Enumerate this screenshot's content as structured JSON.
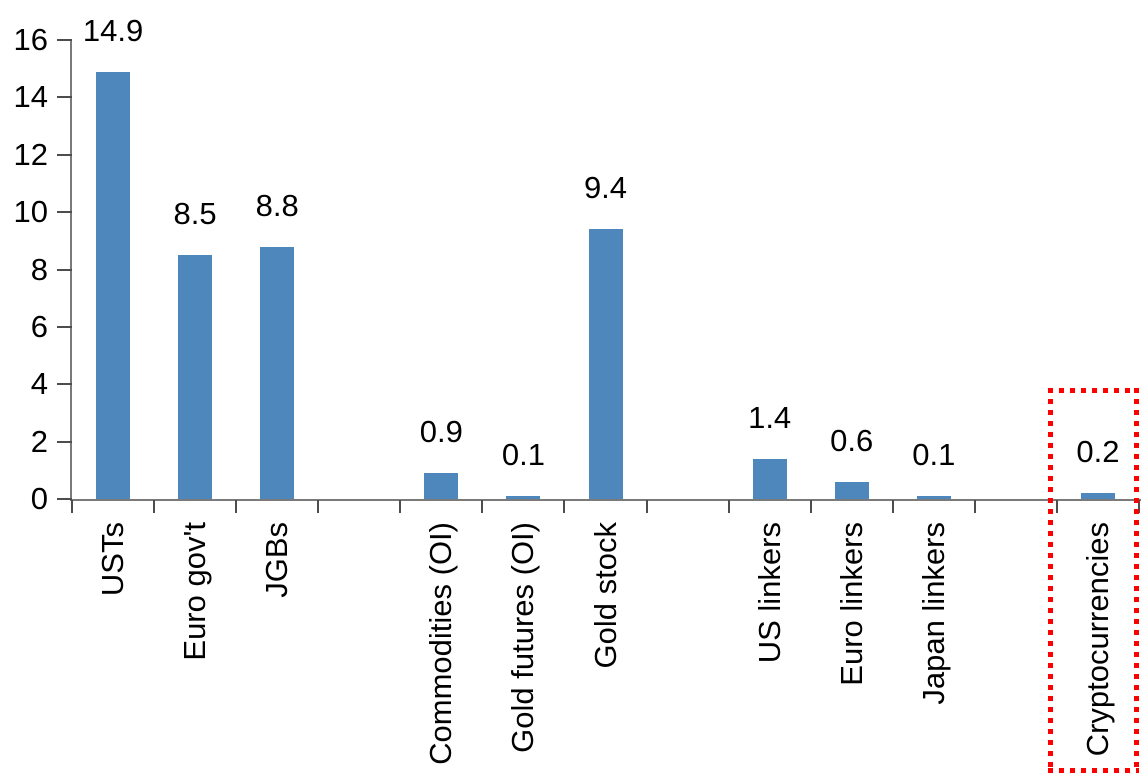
{
  "chart_data": {
    "type": "bar",
    "title": "",
    "y_axis": {
      "min": 0,
      "max": 16,
      "step": 2,
      "tick_labels": [
        "0",
        "2",
        "4",
        "6",
        "8",
        "10",
        "12",
        "14",
        "16"
      ],
      "gridlines": false
    },
    "total_slots": 13,
    "bars": [
      {
        "label": "USTs",
        "value": 14.9,
        "display": "14.9",
        "slot": 0,
        "highlighted": false
      },
      {
        "label": "Euro gov't",
        "value": 8.5,
        "display": "8.5",
        "slot": 1,
        "highlighted": false
      },
      {
        "label": "JGBs",
        "value": 8.8,
        "display": "8.8",
        "slot": 2,
        "highlighted": false
      },
      {
        "label": "Commodities (OI)",
        "value": 0.9,
        "display": "0.9",
        "slot": 4,
        "highlighted": false
      },
      {
        "label": "Gold futures (OI)",
        "value": 0.1,
        "display": "0.1",
        "slot": 5,
        "highlighted": false
      },
      {
        "label": "Gold stock",
        "value": 9.4,
        "display": "9.4",
        "slot": 6,
        "highlighted": false
      },
      {
        "label": "US linkers",
        "value": 1.4,
        "display": "1.4",
        "slot": 8,
        "highlighted": false
      },
      {
        "label": "Euro linkers",
        "value": 0.6,
        "display": "0.6",
        "slot": 9,
        "highlighted": false
      },
      {
        "label": "Japan linkers",
        "value": 0.1,
        "display": "0.1",
        "slot": 10,
        "highlighted": false
      },
      {
        "label": "Cryptocurrencies",
        "value": 0.2,
        "display": "0.2",
        "slot": 12,
        "highlighted": true
      }
    ],
    "empty_slots": [
      3,
      7,
      11
    ],
    "colors": {
      "bar": "#4e87bc",
      "axis": "#7a7a7a",
      "tick": "#4d4d4d",
      "text": "#000000",
      "highlight_box": "#ff0000",
      "background": "#ffffff"
    },
    "highlight": {
      "target_label": "Cryptocurrencies",
      "style": "red-dotted-box"
    },
    "legend": null,
    "xlabel": "",
    "ylabel": ""
  }
}
